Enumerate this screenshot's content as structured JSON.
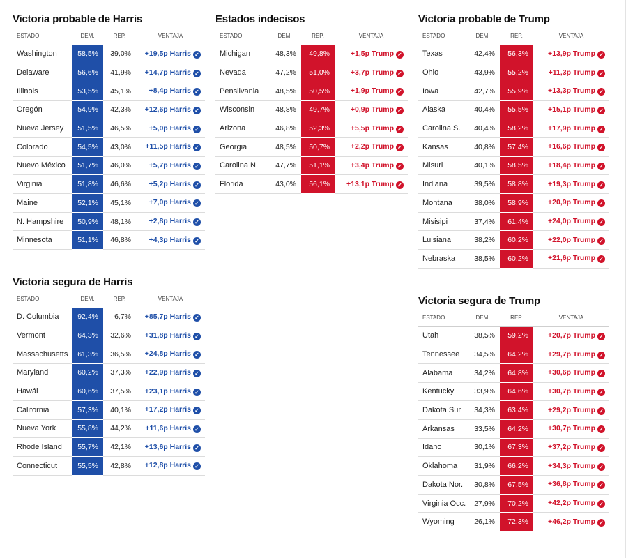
{
  "headers": {
    "state": "ESTADO",
    "dem": "DEM.",
    "rep": "REP.",
    "adv": "VENTAJA"
  },
  "colors": {
    "dem": "#1f4fa8",
    "rep": "#d1132b"
  },
  "icons": {
    "check": "check-circle-icon"
  },
  "panels": {
    "harris_likely": {
      "title": "Victoria probable de Harris",
      "winner": "dem",
      "rows": [
        {
          "state": "Washington",
          "dem": "58,5%",
          "rep": "39,0%",
          "adv": "+19,5p Harris"
        },
        {
          "state": "Delaware",
          "dem": "56,6%",
          "rep": "41,9%",
          "adv": "+14,7p Harris"
        },
        {
          "state": "Illinois",
          "dem": "53,5%",
          "rep": "45,1%",
          "adv": "+8,4p Harris"
        },
        {
          "state": "Oregón",
          "dem": "54,9%",
          "rep": "42,3%",
          "adv": "+12,6p Harris"
        },
        {
          "state": "Nueva Jersey",
          "dem": "51,5%",
          "rep": "46,5%",
          "adv": "+5,0p Harris"
        },
        {
          "state": "Colorado",
          "dem": "54,5%",
          "rep": "43,0%",
          "adv": "+11,5p Harris"
        },
        {
          "state": "Nuevo México",
          "dem": "51,7%",
          "rep": "46,0%",
          "adv": "+5,7p Harris"
        },
        {
          "state": "Virginia",
          "dem": "51,8%",
          "rep": "46,6%",
          "adv": "+5,2p Harris"
        },
        {
          "state": "Maine",
          "dem": "52,1%",
          "rep": "45,1%",
          "adv": "+7,0p Harris"
        },
        {
          "state": "N. Hampshire",
          "dem": "50,9%",
          "rep": "48,1%",
          "adv": "+2,8p Harris"
        },
        {
          "state": "Minnesota",
          "dem": "51,1%",
          "rep": "46,8%",
          "adv": "+4,3p Harris"
        }
      ]
    },
    "swing": {
      "title": "Estados indecisos",
      "winner": "rep",
      "rows": [
        {
          "state": "Michigan",
          "dem": "48,3%",
          "rep": "49,8%",
          "adv": "+1,5p Trump"
        },
        {
          "state": "Nevada",
          "dem": "47,2%",
          "rep": "51,0%",
          "adv": "+3,7p Trump"
        },
        {
          "state": "Pensilvania",
          "dem": "48,5%",
          "rep": "50,5%",
          "adv": "+1,9p Trump"
        },
        {
          "state": "Wisconsin",
          "dem": "48,8%",
          "rep": "49,7%",
          "adv": "+0,9p Trump"
        },
        {
          "state": "Arizona",
          "dem": "46,8%",
          "rep": "52,3%",
          "adv": "+5,5p Trump"
        },
        {
          "state": "Georgia",
          "dem": "48,5%",
          "rep": "50,7%",
          "adv": "+2,2p Trump"
        },
        {
          "state": "Carolina N.",
          "dem": "47,7%",
          "rep": "51,1%",
          "adv": "+3,4p Trump"
        },
        {
          "state": "Florida",
          "dem": "43,0%",
          "rep": "56,1%",
          "adv": "+13,1p Trump"
        }
      ]
    },
    "trump_likely": {
      "title": "Victoria probable de Trump",
      "winner": "rep",
      "rows": [
        {
          "state": "Texas",
          "dem": "42,4%",
          "rep": "56,3%",
          "adv": "+13,9p Trump"
        },
        {
          "state": "Ohio",
          "dem": "43,9%",
          "rep": "55,2%",
          "adv": "+11,3p Trump"
        },
        {
          "state": "Iowa",
          "dem": "42,7%",
          "rep": "55,9%",
          "adv": "+13,3p Trump"
        },
        {
          "state": "Alaska",
          "dem": "40,4%",
          "rep": "55,5%",
          "adv": "+15,1p Trump"
        },
        {
          "state": "Carolina S.",
          "dem": "40,4%",
          "rep": "58,2%",
          "adv": "+17,9p Trump"
        },
        {
          "state": "Kansas",
          "dem": "40,8%",
          "rep": "57,4%",
          "adv": "+16,6p Trump"
        },
        {
          "state": "Misuri",
          "dem": "40,1%",
          "rep": "58,5%",
          "adv": "+18,4p Trump"
        },
        {
          "state": "Indiana",
          "dem": "39,5%",
          "rep": "58,8%",
          "adv": "+19,3p Trump"
        },
        {
          "state": "Montana",
          "dem": "38,0%",
          "rep": "58,9%",
          "adv": "+20,9p Trump"
        },
        {
          "state": "Misisipi",
          "dem": "37,4%",
          "rep": "61,4%",
          "adv": "+24,0p Trump"
        },
        {
          "state": "Luisiana",
          "dem": "38,2%",
          "rep": "60,2%",
          "adv": "+22,0p Trump"
        },
        {
          "state": "Nebraska",
          "dem": "38,5%",
          "rep": "60,2%",
          "adv": "+21,6p Trump"
        }
      ]
    },
    "harris_safe": {
      "title": "Victoria segura de Harris",
      "winner": "dem",
      "rows": [
        {
          "state": "D. Columbia",
          "dem": "92,4%",
          "rep": "6,7%",
          "adv": "+85,7p Harris"
        },
        {
          "state": "Vermont",
          "dem": "64,3%",
          "rep": "32,6%",
          "adv": "+31,8p Harris"
        },
        {
          "state": "Massachusetts",
          "dem": "61,3%",
          "rep": "36,5%",
          "adv": "+24,8p Harris"
        },
        {
          "state": "Maryland",
          "dem": "60,2%",
          "rep": "37,3%",
          "adv": "+22,9p Harris"
        },
        {
          "state": "Hawái",
          "dem": "60,6%",
          "rep": "37,5%",
          "adv": "+23,1p Harris"
        },
        {
          "state": "California",
          "dem": "57,3%",
          "rep": "40,1%",
          "adv": "+17,2p Harris"
        },
        {
          "state": "Nueva York",
          "dem": "55,8%",
          "rep": "44,2%",
          "adv": "+11,6p Harris"
        },
        {
          "state": "Rhode Island",
          "dem": "55,7%",
          "rep": "42,1%",
          "adv": "+13,6p Harris"
        },
        {
          "state": "Connecticut",
          "dem": "55,5%",
          "rep": "42,8%",
          "adv": "+12,8p Harris"
        }
      ]
    },
    "trump_safe": {
      "title": "Victoria segura de Trump",
      "winner": "rep",
      "rows": [
        {
          "state": "Utah",
          "dem": "38,5%",
          "rep": "59,2%",
          "adv": "+20,7p Trump"
        },
        {
          "state": "Tennessee",
          "dem": "34,5%",
          "rep": "64,2%",
          "adv": "+29,7p Trump"
        },
        {
          "state": "Alabama",
          "dem": "34,2%",
          "rep": "64,8%",
          "adv": "+30,6p Trump"
        },
        {
          "state": "Kentucky",
          "dem": "33,9%",
          "rep": "64,6%",
          "adv": "+30,7p Trump"
        },
        {
          "state": "Dakota Sur",
          "dem": "34,3%",
          "rep": "63,4%",
          "adv": "+29,2p Trump"
        },
        {
          "state": "Arkansas",
          "dem": "33,5%",
          "rep": "64,2%",
          "adv": "+30,7p Trump"
        },
        {
          "state": "Idaho",
          "dem": "30,1%",
          "rep": "67,3%",
          "adv": "+37,2p Trump"
        },
        {
          "state": "Oklahoma",
          "dem": "31,9%",
          "rep": "66,2%",
          "adv": "+34,3p Trump"
        },
        {
          "state": "Dakota Nor.",
          "dem": "30,8%",
          "rep": "67,5%",
          "adv": "+36,8p Trump"
        },
        {
          "state": "Virginia Occ.",
          "dem": "27,9%",
          "rep": "70,2%",
          "adv": "+42,2p Trump"
        },
        {
          "state": "Wyoming",
          "dem": "26,1%",
          "rep": "72,3%",
          "adv": "+46,2p Trump"
        }
      ]
    }
  }
}
